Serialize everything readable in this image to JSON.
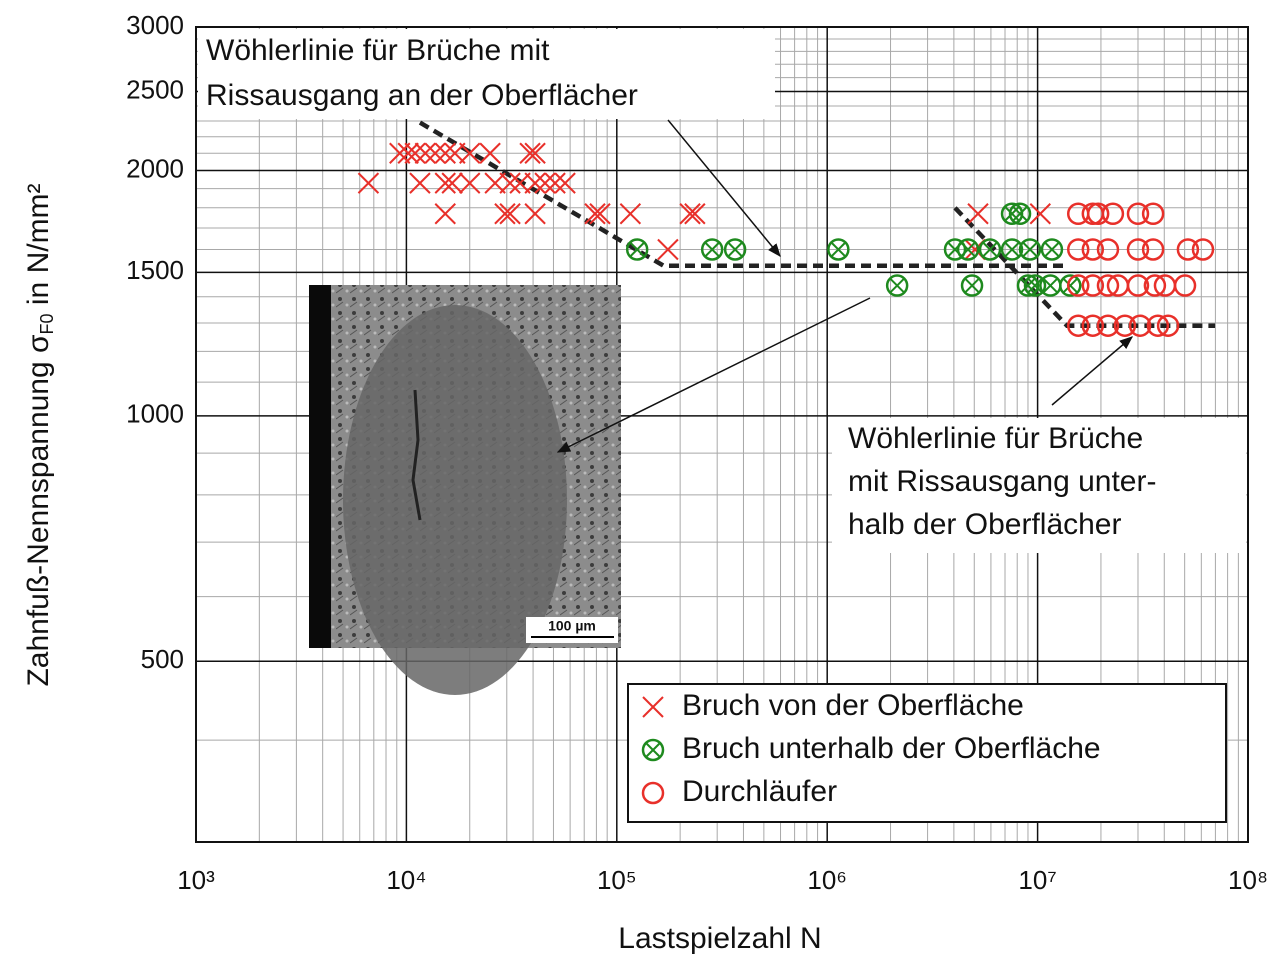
{
  "chart_data": {
    "type": "scatter",
    "x_label": "Lastspielzahl N",
    "y_label": {
      "text": "Zahnfuß-Nennspannung σ",
      "subscript": "F0",
      "after": " in N/mm²"
    },
    "log_x": true,
    "log_y": true,
    "grid": true,
    "legend": "lower right",
    "xlim": [
      1000,
      100000000
    ],
    "ylim": [
      300,
      3000
    ],
    "xticks": [
      {
        "value": 1000,
        "label": "10³"
      },
      {
        "value": 10000,
        "label": "10⁴"
      },
      {
        "value": 100000,
        "label": "10⁵"
      },
      {
        "value": 1000000,
        "label": "10⁶"
      },
      {
        "value": 10000000,
        "label": "10⁷"
      },
      {
        "value": 100000000,
        "label": "10⁸"
      }
    ],
    "yticks": [
      500,
      1000,
      1500,
      2000,
      2500,
      3000
    ],
    "x_minor_ticks": [
      2000,
      3000,
      4000,
      5000,
      6000,
      7000,
      8000,
      9000,
      20000,
      30000,
      40000,
      50000,
      60000,
      70000,
      80000,
      90000,
      200000,
      300000,
      400000,
      500000,
      600000,
      700000,
      800000,
      900000,
      2000000,
      3000000,
      4000000,
      5000000,
      6000000,
      7000000,
      8000000,
      9000000,
      20000000,
      30000000,
      40000000,
      50000000,
      60000000,
      70000000,
      80000000,
      90000000
    ],
    "y_minor_ticks": [
      400,
      600,
      700,
      800,
      900,
      1100,
      1200,
      1300,
      1400,
      1600,
      1700,
      1800,
      1900,
      2100,
      2200,
      2300,
      2400,
      2600,
      2700,
      2800,
      2900
    ],
    "series": [
      {
        "name": "Bruch von der Oberfläche",
        "color": "#e8302a",
        "marker": "x",
        "x": [
          6600,
          9300,
          10200,
          11000,
          12300,
          13700,
          15300,
          17000,
          20000,
          25000,
          38700,
          40900,
          11600,
          15300,
          16500,
          20000,
          26400,
          31100,
          34700,
          40900,
          45600,
          50900,
          56800,
          15300,
          29400,
          31100,
          40900,
          78800,
          83200,
          116000,
          223000,
          235000,
          5210000,
          10300000,
          175000,
          5040000
        ],
        "y": [
          1930,
          2100,
          2100,
          2100,
          2100,
          2100,
          2100,
          2100,
          2100,
          2100,
          2100,
          2100,
          1930,
          1930,
          1930,
          1930,
          1930,
          1930,
          1930,
          1930,
          1930,
          1930,
          1930,
          1770,
          1770,
          1770,
          1770,
          1770,
          1770,
          1770,
          1770,
          1770,
          1770,
          1770,
          1600,
          1600
        ]
      },
      {
        "name": "Bruch unterhalb der Oberfläche",
        "color": "#1e8a1e",
        "marker": "xo",
        "x": [
          125000,
          284000,
          365000,
          1130000,
          4050000,
          4670000,
          5940000,
          7560000,
          9200000,
          11700000,
          7560000,
          8250000,
          2150000,
          4880000,
          9000000,
          9720000,
          11500000,
          14300000
        ],
        "y": [
          1600,
          1600,
          1600,
          1600,
          1600,
          1600,
          1600,
          1600,
          1600,
          1600,
          1770,
          1770,
          1445,
          1445,
          1445,
          1445,
          1445,
          1445
        ]
      },
      {
        "name": "Durchläufer",
        "color": "#e8302a",
        "marker": "o",
        "x": [
          15600000,
          18300000,
          19400000,
          22800000,
          30000000,
          35400000,
          15600000,
          18300000,
          21600000,
          30000000,
          35400000,
          51800000,
          61100000,
          15600000,
          18300000,
          21600000,
          24100000,
          30000000,
          36100000,
          40300000,
          50200000,
          15600000,
          18300000,
          21600000,
          26000000,
          30700000,
          37300000,
          41700000
        ],
        "y": [
          1770,
          1770,
          1770,
          1770,
          1770,
          1770,
          1600,
          1600,
          1600,
          1600,
          1600,
          1600,
          1600,
          1445,
          1445,
          1445,
          1445,
          1445,
          1445,
          1445,
          1445,
          1290,
          1290,
          1290,
          1290,
          1290,
          1290,
          1290
        ]
      }
    ],
    "wohler_lines": [
      {
        "x": [
          11600,
          167000,
          13500000
        ],
        "y": [
          2290,
          1528,
          1528
        ]
      },
      {
        "x": [
          4050000,
          13800000,
          69700000
        ],
        "y": [
          1800,
          1290,
          1290
        ]
      }
    ],
    "annotations": [
      {
        "lines": [
          "Wöhlerlinie für Brüche mit",
          "Rissausgang an der Oberflächer"
        ]
      },
      {
        "lines": [
          "Wöhlerlinie für Brüche",
          "mit Rissausgang unter-",
          "halb der Oberflächer"
        ]
      }
    ],
    "inset_scale_label": "100 µm"
  }
}
